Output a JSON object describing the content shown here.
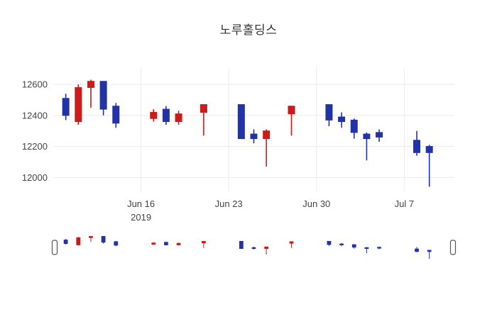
{
  "chart_data": {
    "type": "candlestick",
    "title": "노루홀딩스",
    "legend": "none",
    "grid": "on",
    "x_range": [
      "2019-06-09",
      "2019-07-11"
    ],
    "y_range": [
      11910,
      12710
    ],
    "y_ticks": [
      {
        "value": 12000,
        "label": "12000"
      },
      {
        "value": 12200,
        "label": "12200"
      },
      {
        "value": 12400,
        "label": "12400"
      },
      {
        "value": 12600,
        "label": "12600"
      }
    ],
    "x_ticks": [
      {
        "date": "2019-06-16",
        "label": "Jun 16",
        "sub": "2019"
      },
      {
        "date": "2019-06-23",
        "label": "Jun 23",
        "sub": ""
      },
      {
        "date": "2019-06-30",
        "label": "Jun 30",
        "sub": ""
      },
      {
        "date": "2019-07-07",
        "label": "Jul 7",
        "sub": ""
      }
    ],
    "increasing_color": "#cc1b1b",
    "decreasing_color": "#2233aa",
    "grid_color": "#ebebeb",
    "tick_color": "#444444",
    "candles": [
      {
        "date": "2019-06-10",
        "open": 12510,
        "high": 12540,
        "low": 12370,
        "close": 12400
      },
      {
        "date": "2019-06-11",
        "open": 12360,
        "high": 12600,
        "low": 12340,
        "close": 12580
      },
      {
        "date": "2019-06-12",
        "open": 12580,
        "high": 12630,
        "low": 12450,
        "close": 12620
      },
      {
        "date": "2019-06-13",
        "open": 12620,
        "high": 12620,
        "low": 12400,
        "close": 12440
      },
      {
        "date": "2019-06-14",
        "open": 12460,
        "high": 12480,
        "low": 12320,
        "close": 12350
      },
      {
        "date": "2019-06-17",
        "open": 12380,
        "high": 12440,
        "low": 12360,
        "close": 12420
      },
      {
        "date": "2019-06-18",
        "open": 12440,
        "high": 12460,
        "low": 12340,
        "close": 12360
      },
      {
        "date": "2019-06-19",
        "open": 12360,
        "high": 12430,
        "low": 12340,
        "close": 12410
      },
      {
        "date": "2019-06-21",
        "open": 12420,
        "high": 12470,
        "low": 12270,
        "close": 12470
      },
      {
        "date": "2019-06-24",
        "open": 12470,
        "high": 12470,
        "low": 12250,
        "close": 12250
      },
      {
        "date": "2019-06-25",
        "open": 12280,
        "high": 12310,
        "low": 12220,
        "close": 12250
      },
      {
        "date": "2019-06-26",
        "open": 12250,
        "high": 12310,
        "low": 12070,
        "close": 12300
      },
      {
        "date": "2019-06-28",
        "open": 12410,
        "high": 12460,
        "low": 12270,
        "close": 12460
      },
      {
        "date": "2019-07-01",
        "open": 12470,
        "high": 12470,
        "low": 12330,
        "close": 12370
      },
      {
        "date": "2019-07-02",
        "open": 12390,
        "high": 12420,
        "low": 12320,
        "close": 12360
      },
      {
        "date": "2019-07-03",
        "open": 12370,
        "high": 12380,
        "low": 12250,
        "close": 12290
      },
      {
        "date": "2019-07-04",
        "open": 12280,
        "high": 12290,
        "low": 12110,
        "close": 12250
      },
      {
        "date": "2019-07-05",
        "open": 12290,
        "high": 12310,
        "low": 12230,
        "close": 12260
      },
      {
        "date": "2019-07-08",
        "open": 12240,
        "high": 12300,
        "low": 12140,
        "close": 12160
      },
      {
        "date": "2019-07-09",
        "open": 12200,
        "high": 12210,
        "low": 11940,
        "close": 12160
      }
    ]
  }
}
